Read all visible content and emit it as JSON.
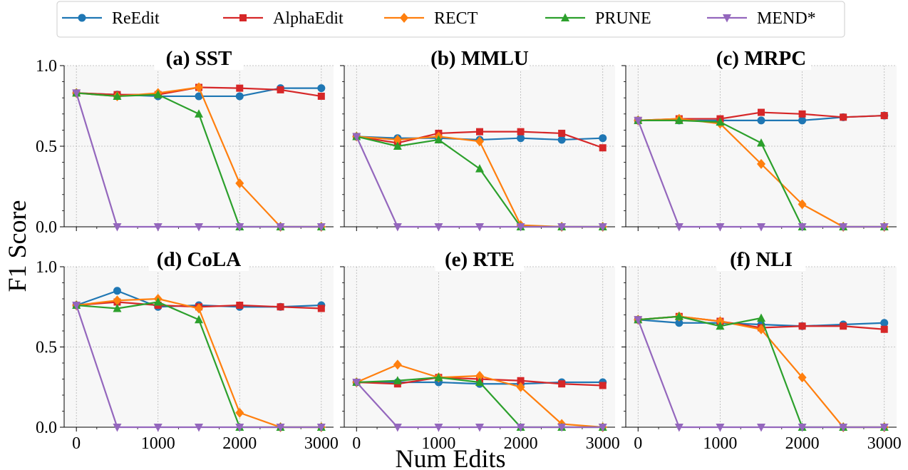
{
  "figure": {
    "xlabel": "Num Edits",
    "ylabel": "F1 Score"
  },
  "legend": [
    {
      "name": "ReEdit",
      "color": "#1f77b4",
      "marker": "circle"
    },
    {
      "name": "AlphaEdit",
      "color": "#d62728",
      "marker": "square"
    },
    {
      "name": "RECT",
      "color": "#ff7f0e",
      "marker": "diamond"
    },
    {
      "name": "PRUNE",
      "color": "#2ca02c",
      "marker": "triangle-up"
    },
    {
      "name": "MEND*",
      "color": "#9467bd",
      "marker": "triangle-down"
    }
  ],
  "chart_data": [
    {
      "type": "line",
      "title": "(a) SST",
      "x": [
        0,
        500,
        1000,
        1500,
        2000,
        2500,
        3000
      ],
      "xticks": [
        "0",
        "1000",
        "2000",
        "3000"
      ],
      "yticks": [
        "0.0",
        "0.5",
        "1.0"
      ],
      "xlim": [
        -150,
        3150
      ],
      "ylim": [
        0,
        1
      ],
      "grid": true,
      "series": [
        {
          "name": "ReEdit",
          "values": [
            0.83,
            0.82,
            0.81,
            0.81,
            0.81,
            0.86,
            0.86
          ]
        },
        {
          "name": "AlphaEdit",
          "values": [
            0.83,
            0.82,
            0.82,
            0.865,
            0.86,
            0.85,
            0.81
          ]
        },
        {
          "name": "RECT",
          "values": [
            0.83,
            0.81,
            0.83,
            0.865,
            0.27,
            0.0,
            0.0
          ]
        },
        {
          "name": "PRUNE",
          "values": [
            0.83,
            0.81,
            0.82,
            0.7,
            0.0,
            0.0,
            0.0
          ]
        },
        {
          "name": "MEND*",
          "values": [
            0.83,
            0.0,
            0.0,
            0.0,
            0.0,
            0.0,
            0.0
          ]
        }
      ]
    },
    {
      "type": "line",
      "title": "(b) MMLU",
      "x": [
        0,
        500,
        1000,
        1500,
        2000,
        2500,
        3000
      ],
      "xticks": [
        "0",
        "1000",
        "2000",
        "3000"
      ],
      "yticks": [
        "0.0",
        "0.5",
        "1.0"
      ],
      "xlim": [
        -150,
        3150
      ],
      "ylim": [
        0,
        1
      ],
      "grid": true,
      "series": [
        {
          "name": "ReEdit",
          "values": [
            0.56,
            0.55,
            0.55,
            0.54,
            0.55,
            0.54,
            0.55
          ]
        },
        {
          "name": "AlphaEdit",
          "values": [
            0.56,
            0.52,
            0.58,
            0.59,
            0.59,
            0.58,
            0.49
          ]
        },
        {
          "name": "RECT",
          "values": [
            0.56,
            0.54,
            0.56,
            0.53,
            0.01,
            0.0,
            0.0
          ]
        },
        {
          "name": "PRUNE",
          "values": [
            0.56,
            0.5,
            0.54,
            0.36,
            0.0,
            0.0,
            0.0
          ]
        },
        {
          "name": "MEND*",
          "values": [
            0.56,
            0.0,
            0.0,
            0.0,
            0.0,
            0.0,
            0.0
          ]
        }
      ]
    },
    {
      "type": "line",
      "title": "(c) MRPC",
      "x": [
        0,
        500,
        1000,
        1500,
        2000,
        2500,
        3000
      ],
      "xticks": [
        "0",
        "1000",
        "2000",
        "3000"
      ],
      "yticks": [
        "0.0",
        "0.5",
        "1.0"
      ],
      "xlim": [
        -150,
        3150
      ],
      "ylim": [
        0,
        1
      ],
      "grid": true,
      "series": [
        {
          "name": "ReEdit",
          "values": [
            0.66,
            0.66,
            0.66,
            0.66,
            0.66,
            0.68,
            0.69
          ]
        },
        {
          "name": "AlphaEdit",
          "values": [
            0.66,
            0.67,
            0.67,
            0.71,
            0.7,
            0.68,
            0.69
          ]
        },
        {
          "name": "RECT",
          "values": [
            0.66,
            0.67,
            0.64,
            0.39,
            0.14,
            0.0,
            0.0
          ]
        },
        {
          "name": "PRUNE",
          "values": [
            0.66,
            0.66,
            0.65,
            0.52,
            0.0,
            0.0,
            0.0
          ]
        },
        {
          "name": "MEND*",
          "values": [
            0.66,
            0.0,
            0.0,
            0.0,
            0.0,
            0.0,
            0.0
          ]
        }
      ]
    },
    {
      "type": "line",
      "title": "(d) CoLA",
      "x": [
        0,
        500,
        1000,
        1500,
        2000,
        2500,
        3000
      ],
      "xticks": [
        "0",
        "1000",
        "2000",
        "3000"
      ],
      "yticks": [
        "0.0",
        "0.5",
        "1.0"
      ],
      "xlim": [
        -150,
        3150
      ],
      "ylim": [
        0,
        1
      ],
      "grid": true,
      "series": [
        {
          "name": "ReEdit",
          "values": [
            0.76,
            0.85,
            0.75,
            0.76,
            0.75,
            0.75,
            0.76
          ]
        },
        {
          "name": "AlphaEdit",
          "values": [
            0.76,
            0.78,
            0.76,
            0.75,
            0.76,
            0.75,
            0.74
          ]
        },
        {
          "name": "RECT",
          "values": [
            0.76,
            0.79,
            0.8,
            0.74,
            0.09,
            0.0,
            0.0
          ]
        },
        {
          "name": "PRUNE",
          "values": [
            0.76,
            0.74,
            0.78,
            0.67,
            0.0,
            0.0,
            0.0
          ]
        },
        {
          "name": "MEND*",
          "values": [
            0.76,
            0.0,
            0.0,
            0.0,
            0.0,
            0.0,
            0.0
          ]
        }
      ]
    },
    {
      "type": "line",
      "title": "(e) RTE",
      "x": [
        0,
        500,
        1000,
        1500,
        2000,
        2500,
        3000
      ],
      "xticks": [
        "0",
        "1000",
        "2000",
        "3000"
      ],
      "yticks": [
        "0.0",
        "0.5",
        "1.0"
      ],
      "xlim": [
        -150,
        3150
      ],
      "ylim": [
        0,
        1
      ],
      "grid": true,
      "series": [
        {
          "name": "ReEdit",
          "values": [
            0.28,
            0.28,
            0.28,
            0.27,
            0.27,
            0.28,
            0.28
          ]
        },
        {
          "name": "AlphaEdit",
          "values": [
            0.28,
            0.27,
            0.31,
            0.3,
            0.29,
            0.27,
            0.26
          ]
        },
        {
          "name": "RECT",
          "values": [
            0.28,
            0.39,
            0.31,
            0.32,
            0.25,
            0.02,
            0.0
          ]
        },
        {
          "name": "PRUNE",
          "values": [
            0.28,
            0.29,
            0.31,
            0.28,
            0.0,
            0.0,
            0.0
          ]
        },
        {
          "name": "MEND*",
          "values": [
            0.28,
            0.0,
            0.0,
            0.0,
            0.0,
            0.0,
            0.0
          ]
        }
      ]
    },
    {
      "type": "line",
      "title": "(f) NLI",
      "x": [
        0,
        500,
        1000,
        1500,
        2000,
        2500,
        3000
      ],
      "xticks": [
        "0",
        "1000",
        "2000",
        "3000"
      ],
      "yticks": [
        "0.0",
        "0.5",
        "1.0"
      ],
      "xlim": [
        -150,
        3150
      ],
      "ylim": [
        0,
        1
      ],
      "grid": true,
      "series": [
        {
          "name": "ReEdit",
          "values": [
            0.67,
            0.65,
            0.65,
            0.64,
            0.63,
            0.64,
            0.65
          ]
        },
        {
          "name": "AlphaEdit",
          "values": [
            0.67,
            0.69,
            0.66,
            0.62,
            0.63,
            0.63,
            0.61
          ]
        },
        {
          "name": "RECT",
          "values": [
            0.67,
            0.69,
            0.66,
            0.61,
            0.31,
            0.0,
            0.0
          ]
        },
        {
          "name": "PRUNE",
          "values": [
            0.67,
            0.69,
            0.63,
            0.68,
            0.0,
            0.0,
            0.0
          ]
        },
        {
          "name": "MEND*",
          "values": [
            0.67,
            0.0,
            0.0,
            0.0,
            0.0,
            0.0,
            0.0
          ]
        }
      ]
    }
  ]
}
